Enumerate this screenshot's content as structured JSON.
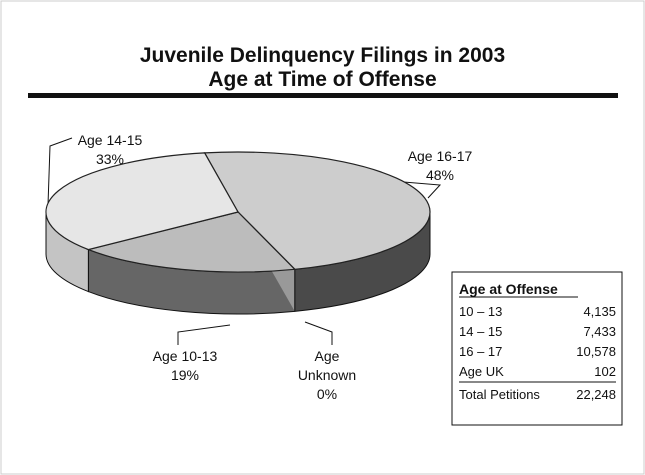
{
  "chart_data": {
    "type": "pie3d",
    "title": [
      "Juvenile Delinquency Filings in 2003",
      "Age at Time of Offense"
    ],
    "categories": [
      "Age 16-17",
      "Age Unknown",
      "Age 10-13",
      "Age 14-15"
    ],
    "values": [
      48,
      0,
      19,
      33
    ],
    "value_labels": [
      "48%",
      "0%",
      "19%",
      "33%"
    ],
    "colors": [
      {
        "top": "#cdcdcd",
        "side": "#4a4a4a"
      },
      {
        "top": "#999999",
        "side": "#333333"
      },
      {
        "top": "#bcbcbc",
        "side": "#666666"
      },
      {
        "top": "#e6e6e6",
        "side": "#c4c4c4"
      }
    ],
    "table": {
      "header": "Age at Offense",
      "rows": [
        [
          "10 – 13",
          "4,135"
        ],
        [
          "14 – 15",
          "7,433"
        ],
        [
          "16 – 17",
          "10,578"
        ],
        [
          "Age UK",
          "102"
        ],
        [
          "Total Petitions",
          "22,248"
        ]
      ]
    }
  }
}
